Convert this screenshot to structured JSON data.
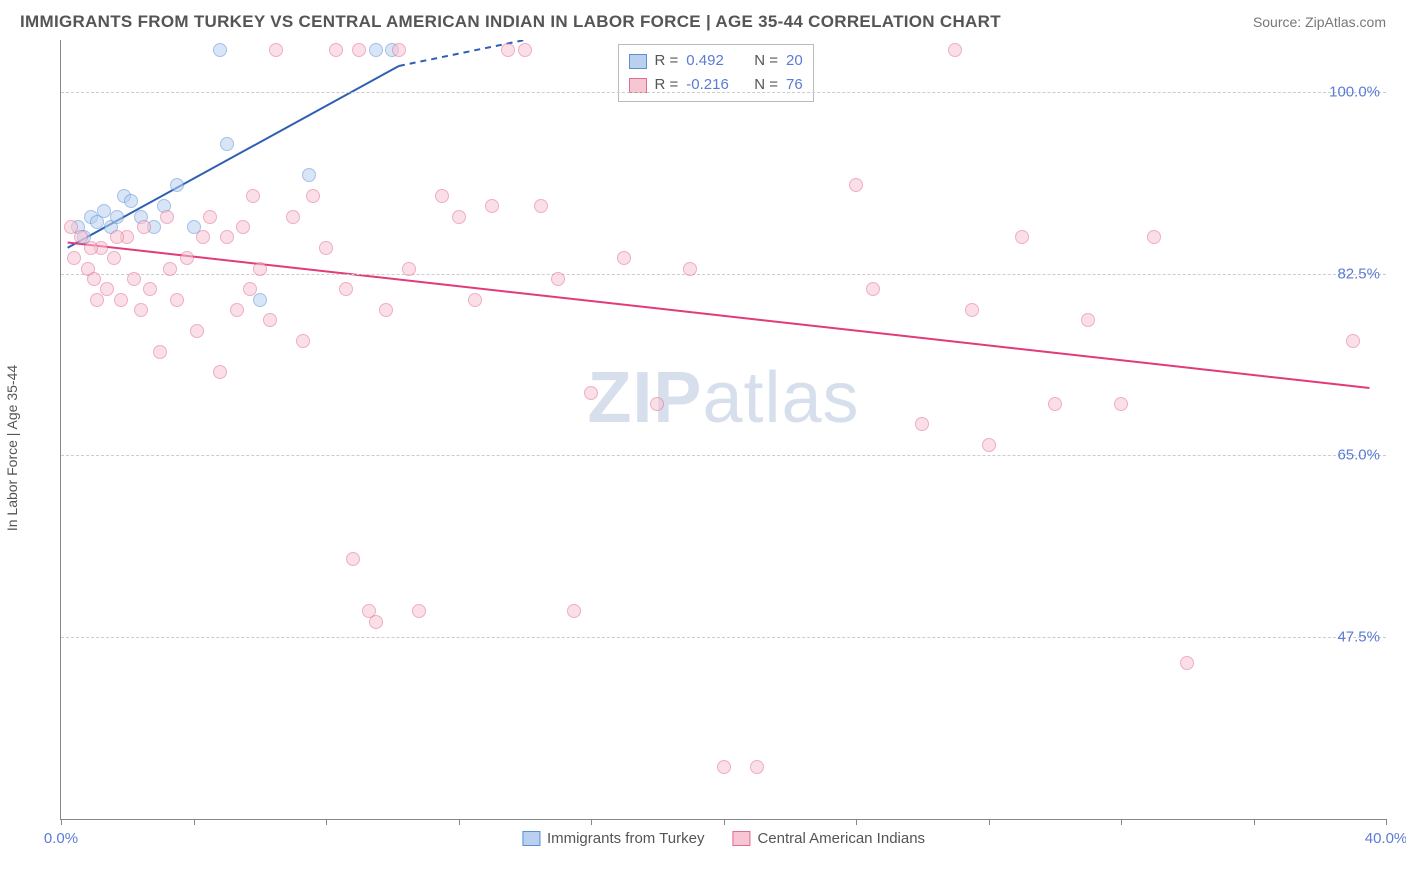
{
  "header": {
    "title": "IMMIGRANTS FROM TURKEY VS CENTRAL AMERICAN INDIAN IN LABOR FORCE | AGE 35-44 CORRELATION CHART",
    "source": "Source: ZipAtlas.com"
  },
  "chart": {
    "type": "scatter",
    "ylabel": "In Labor Force | Age 35-44",
    "xlim": [
      0,
      40
    ],
    "ylim": [
      30,
      105
    ],
    "yticks": [
      {
        "v": 47.5,
        "label": "47.5%"
      },
      {
        "v": 65.0,
        "label": "65.0%"
      },
      {
        "v": 82.5,
        "label": "82.5%"
      },
      {
        "v": 100.0,
        "label": "100.0%"
      }
    ],
    "xticks_major": [
      0,
      40
    ],
    "xticks_minor": [
      4,
      8,
      12,
      16,
      20,
      24,
      28,
      32,
      36
    ],
    "xtick_labels": {
      "0": "0.0%",
      "40": "40.0%"
    },
    "background_color": "#ffffff",
    "grid_color": "#cccccc",
    "axis_color": "#888888",
    "marker_radius": 7,
    "marker_stroke_width": 1.4,
    "series": [
      {
        "name": "Immigrants from Turkey",
        "fill": "#b9d0ef",
        "stroke": "#5b8fd6",
        "fill_opacity": 0.55,
        "R": "0.492",
        "N": "20",
        "trend": {
          "solid": {
            "x1": 0.2,
            "y1": 85,
            "x2": 10.2,
            "y2": 102.5
          },
          "dashed": {
            "x1": 10.2,
            "y1": 102.5,
            "x2": 14,
            "y2": 105
          },
          "color": "#2e5fb3",
          "width": 2
        },
        "points": [
          {
            "x": 0.5,
            "y": 87
          },
          {
            "x": 0.7,
            "y": 86
          },
          {
            "x": 0.9,
            "y": 88
          },
          {
            "x": 1.1,
            "y": 87.5
          },
          {
            "x": 1.3,
            "y": 88.5
          },
          {
            "x": 1.5,
            "y": 87
          },
          {
            "x": 1.7,
            "y": 88
          },
          {
            "x": 1.9,
            "y": 90
          },
          {
            "x": 2.1,
            "y": 89.5
          },
          {
            "x": 2.4,
            "y": 88
          },
          {
            "x": 2.8,
            "y": 87
          },
          {
            "x": 3.1,
            "y": 89
          },
          {
            "x": 3.5,
            "y": 91
          },
          {
            "x": 4.0,
            "y": 87
          },
          {
            "x": 4.8,
            "y": 104
          },
          {
            "x": 5.0,
            "y": 95
          },
          {
            "x": 6.0,
            "y": 80
          },
          {
            "x": 7.5,
            "y": 92
          },
          {
            "x": 9.5,
            "y": 104
          },
          {
            "x": 10,
            "y": 104
          }
        ]
      },
      {
        "name": "Central American Indians",
        "fill": "#f7c6d3",
        "stroke": "#e36b94",
        "fill_opacity": 0.55,
        "R": "-0.216",
        "N": "76",
        "trend": {
          "solid": {
            "x1": 0.2,
            "y1": 85.5,
            "x2": 39.5,
            "y2": 71.5
          },
          "color": "#e03b7a",
          "width": 2
        },
        "points": [
          {
            "x": 0.4,
            "y": 84
          },
          {
            "x": 0.6,
            "y": 86
          },
          {
            "x": 0.8,
            "y": 83
          },
          {
            "x": 1.0,
            "y": 82
          },
          {
            "x": 1.2,
            "y": 85
          },
          {
            "x": 1.4,
            "y": 81
          },
          {
            "x": 1.6,
            "y": 84
          },
          {
            "x": 1.8,
            "y": 80
          },
          {
            "x": 2.0,
            "y": 86
          },
          {
            "x": 2.2,
            "y": 82
          },
          {
            "x": 2.4,
            "y": 79
          },
          {
            "x": 2.7,
            "y": 81
          },
          {
            "x": 3.0,
            "y": 75
          },
          {
            "x": 3.2,
            "y": 88
          },
          {
            "x": 3.5,
            "y": 80
          },
          {
            "x": 3.8,
            "y": 84
          },
          {
            "x": 4.1,
            "y": 77
          },
          {
            "x": 4.5,
            "y": 88
          },
          {
            "x": 4.8,
            "y": 73
          },
          {
            "x": 5.0,
            "y": 86
          },
          {
            "x": 5.3,
            "y": 79
          },
          {
            "x": 5.5,
            "y": 87
          },
          {
            "x": 5.8,
            "y": 90
          },
          {
            "x": 6.0,
            "y": 83
          },
          {
            "x": 6.3,
            "y": 78
          },
          {
            "x": 6.5,
            "y": 104
          },
          {
            "x": 7.0,
            "y": 88
          },
          {
            "x": 7.3,
            "y": 76
          },
          {
            "x": 7.6,
            "y": 90
          },
          {
            "x": 8.0,
            "y": 85
          },
          {
            "x": 8.3,
            "y": 104
          },
          {
            "x": 8.6,
            "y": 81
          },
          {
            "x": 8.8,
            "y": 55
          },
          {
            "x": 9.0,
            "y": 104
          },
          {
            "x": 9.3,
            "y": 50
          },
          {
            "x": 9.5,
            "y": 49
          },
          {
            "x": 9.8,
            "y": 79
          },
          {
            "x": 10.2,
            "y": 104
          },
          {
            "x": 10.5,
            "y": 83
          },
          {
            "x": 10.8,
            "y": 50
          },
          {
            "x": 11.5,
            "y": 90
          },
          {
            "x": 12,
            "y": 88
          },
          {
            "x": 12.5,
            "y": 80
          },
          {
            "x": 13,
            "y": 89
          },
          {
            "x": 13.5,
            "y": 104
          },
          {
            "x": 14,
            "y": 104
          },
          {
            "x": 14.5,
            "y": 89
          },
          {
            "x": 15,
            "y": 82
          },
          {
            "x": 15.5,
            "y": 50
          },
          {
            "x": 16,
            "y": 71
          },
          {
            "x": 17,
            "y": 84
          },
          {
            "x": 18,
            "y": 70
          },
          {
            "x": 19,
            "y": 83
          },
          {
            "x": 20,
            "y": 35
          },
          {
            "x": 21,
            "y": 35
          },
          {
            "x": 24,
            "y": 91
          },
          {
            "x": 24.5,
            "y": 81
          },
          {
            "x": 26,
            "y": 68
          },
          {
            "x": 27,
            "y": 104
          },
          {
            "x": 27.5,
            "y": 79
          },
          {
            "x": 28,
            "y": 66
          },
          {
            "x": 29,
            "y": 86
          },
          {
            "x": 30,
            "y": 70
          },
          {
            "x": 31,
            "y": 78
          },
          {
            "x": 32,
            "y": 70
          },
          {
            "x": 33,
            "y": 86
          },
          {
            "x": 34,
            "y": 45
          },
          {
            "x": 39,
            "y": 76
          },
          {
            "x": 0.3,
            "y": 87
          },
          {
            "x": 0.9,
            "y": 85
          },
          {
            "x": 1.1,
            "y": 80
          },
          {
            "x": 1.7,
            "y": 86
          },
          {
            "x": 2.5,
            "y": 87
          },
          {
            "x": 3.3,
            "y": 83
          },
          {
            "x": 4.3,
            "y": 86
          },
          {
            "x": 5.7,
            "y": 81
          }
        ]
      }
    ],
    "legend_bottom": [
      {
        "label": "Immigrants from Turkey",
        "fill": "#b9d0ef",
        "stroke": "#5b8fd6"
      },
      {
        "label": "Central American Indians",
        "fill": "#f7c6d3",
        "stroke": "#e36b94"
      }
    ],
    "watermark": {
      "zip": "ZIP",
      "rest": "atlas"
    }
  }
}
